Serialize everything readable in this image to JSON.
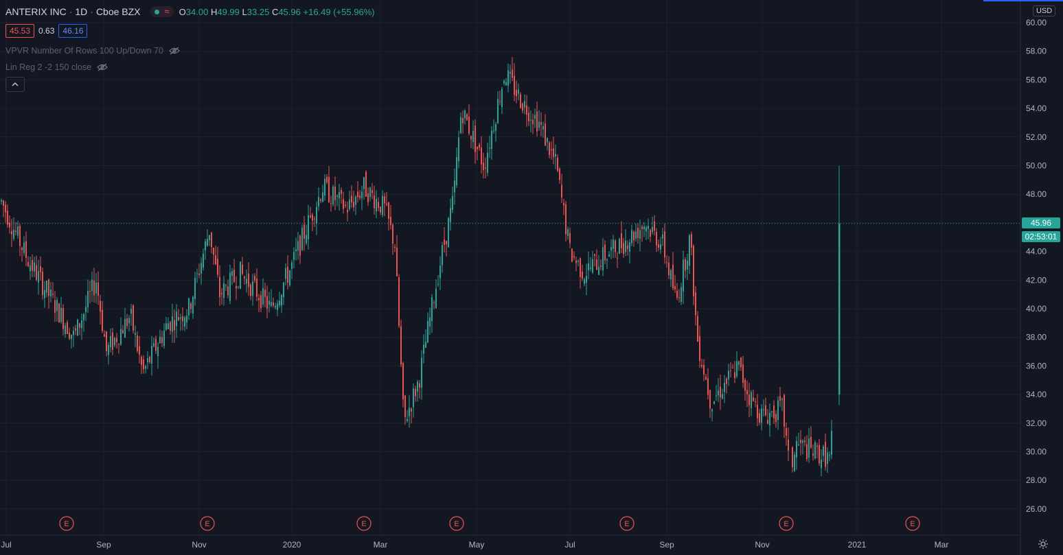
{
  "header": {
    "symbol": "ANTERIX INC",
    "interval": "1D",
    "exchange": "Cboe BZX",
    "open_label": "O",
    "open": "34.00",
    "high_label": "H",
    "high": "49.99",
    "low_label": "L",
    "low": "33.25",
    "close_label": "C",
    "close": "45.96",
    "change": "+16.49 (+55.96%)"
  },
  "spread": {
    "bid": "45.53",
    "spread": "0.63",
    "ask": "46.16"
  },
  "indicators": [
    {
      "label": "VPVR Number Of Rows 100 Up/Down 70"
    },
    {
      "label": "Lin Reg 2 -2 150 close"
    }
  ],
  "currency": "USD",
  "last_price": "45.96",
  "countdown": "02:53:01",
  "colors": {
    "up": "#26a69a",
    "down": "#ef5350",
    "background": "#131722",
    "grid": "#1e222d"
  },
  "icons": [
    "visibility-off-icon",
    "chevron-up-icon",
    "gear-icon",
    "earnings-marker-icon"
  ],
  "chart_data": {
    "type": "candlestick",
    "y_axis_ticks": [
      "60.00",
      "58.00",
      "56.00",
      "54.00",
      "52.00",
      "50.00",
      "48.00",
      "46.00",
      "44.00",
      "42.00",
      "40.00",
      "38.00",
      "36.00",
      "34.00",
      "32.00",
      "30.00",
      "28.00",
      "26.00"
    ],
    "ylim": [
      25,
      60.5
    ],
    "x_axis_ticks": [
      "Jul",
      "Sep",
      "Nov",
      "2020",
      "Mar",
      "May",
      "Jul",
      "Sep",
      "Nov",
      "2021",
      "Mar"
    ],
    "earnings_marker_label": "E",
    "earnings_markers": [
      "Aug 2019",
      "Nov 2019",
      "Feb 2020",
      "Apr 2020",
      "Aug 2020",
      "Nov 2020",
      "Feb 2021"
    ],
    "series_close": [
      {
        "date": "Jul 2019",
        "close": 47.5
      },
      {
        "date": "Aug 2019",
        "close": 43.5
      },
      {
        "date": "Aug 2019",
        "close": 38.0
      },
      {
        "date": "Sep 2019",
        "close": 42.0
      },
      {
        "date": "Sep 2019",
        "close": 37.0
      },
      {
        "date": "Oct 2019",
        "close": 39.5
      },
      {
        "date": "Oct 2019",
        "close": 35.5
      },
      {
        "date": "Oct 2019",
        "close": 39.0
      },
      {
        "date": "Nov 2019",
        "close": 40.0
      },
      {
        "date": "Nov 2019",
        "close": 45.5
      },
      {
        "date": "Nov 2019",
        "close": 41.0
      },
      {
        "date": "Dec 2019",
        "close": 42.5
      },
      {
        "date": "Dec 2019",
        "close": 40.0
      },
      {
        "date": "Dec 2019",
        "close": 43.0
      },
      {
        "date": "Jan 2020",
        "close": 45.5
      },
      {
        "date": "Jan 2020",
        "close": 48.5
      },
      {
        "date": "Jan 2020",
        "close": 47.0
      },
      {
        "date": "Feb 2020",
        "close": 48.5
      },
      {
        "date": "Feb 2020",
        "close": 47.0
      },
      {
        "date": "Mar 2020",
        "close": 44.5
      },
      {
        "date": "Mar 2020",
        "close": 32.0
      },
      {
        "date": "Mar 2020",
        "close": 35.0
      },
      {
        "date": "Apr 2020",
        "close": 43.0
      },
      {
        "date": "Apr 2020",
        "close": 47.5
      },
      {
        "date": "Apr 2020",
        "close": 54.0
      },
      {
        "date": "May 2020",
        "close": 50.0
      },
      {
        "date": "May 2020",
        "close": 56.5
      },
      {
        "date": "May 2020",
        "close": 54.5
      },
      {
        "date": "Jun 2020",
        "close": 53.0
      },
      {
        "date": "Jun 2020",
        "close": 50.0
      },
      {
        "date": "Jul 2020",
        "close": 44.0
      },
      {
        "date": "Jul 2020",
        "close": 42.5
      },
      {
        "date": "Jul 2020",
        "close": 43.5
      },
      {
        "date": "Aug 2020",
        "close": 44.5
      },
      {
        "date": "Aug 2020",
        "close": 46.0
      },
      {
        "date": "Aug 2020",
        "close": 44.5
      },
      {
        "date": "Sep 2020",
        "close": 40.5
      },
      {
        "date": "Sep 2020",
        "close": 45.0
      },
      {
        "date": "Sep 2020",
        "close": 38.0
      },
      {
        "date": "Oct 2020",
        "close": 33.5
      },
      {
        "date": "Oct 2020",
        "close": 35.0
      },
      {
        "date": "Oct 2020",
        "close": 36.0
      },
      {
        "date": "Oct 2020",
        "close": 34.0
      },
      {
        "date": "Nov 2020",
        "close": 32.5
      },
      {
        "date": "Nov 2020",
        "close": 33.0
      },
      {
        "date": "Nov 2020",
        "close": 28.5
      },
      {
        "date": "Dec 2020",
        "close": 30.5
      },
      {
        "date": "Dec 2020",
        "close": 29.5
      },
      {
        "date": "Dec 2020",
        "close": 45.96
      }
    ]
  }
}
